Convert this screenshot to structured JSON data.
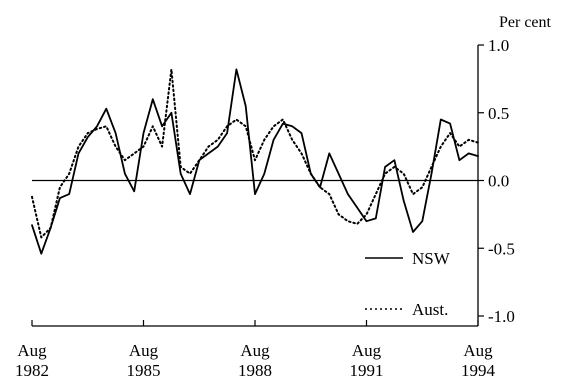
{
  "chart_data": {
    "type": "line",
    "title": "",
    "xlabel": "",
    "ylabel": "Per cent",
    "ylim": [
      -1.0,
      1.0
    ],
    "xlim": [
      "1982-08",
      "1994-08"
    ],
    "yticks": [
      "1.0",
      "0.5",
      "0.0",
      "-0.5",
      "-1.0"
    ],
    "xticks": [
      {
        "top": "Aug",
        "bottom": "1982",
        "date": "1982-08"
      },
      {
        "top": "Aug",
        "bottom": "1985",
        "date": "1985-08"
      },
      {
        "top": "Aug",
        "bottom": "1988",
        "date": "1988-08"
      },
      {
        "top": "Aug",
        "bottom": "1991",
        "date": "1991-08"
      },
      {
        "top": "Aug",
        "bottom": "1994",
        "date": "1994-08"
      }
    ],
    "grid": false,
    "legend_position": "bottom-right",
    "series": [
      {
        "name": "NSW",
        "style": "solid",
        "color": "#000000",
        "points": [
          [
            "1982-08",
            -0.33
          ],
          [
            "1982-11",
            -0.54
          ],
          [
            "1983-02",
            -0.35
          ],
          [
            "1983-05",
            -0.13
          ],
          [
            "1983-08",
            -0.1
          ],
          [
            "1983-11",
            0.2
          ],
          [
            "1984-02",
            0.32
          ],
          [
            "1984-05",
            0.4
          ],
          [
            "1984-08",
            0.53
          ],
          [
            "1984-11",
            0.35
          ],
          [
            "1985-02",
            0.05
          ],
          [
            "1985-05",
            -0.08
          ],
          [
            "1985-08",
            0.35
          ],
          [
            "1985-11",
            0.6
          ],
          [
            "1986-02",
            0.4
          ],
          [
            "1986-05",
            0.5
          ],
          [
            "1986-08",
            0.05
          ],
          [
            "1986-11",
            -0.1
          ],
          [
            "1987-02",
            0.15
          ],
          [
            "1987-05",
            0.2
          ],
          [
            "1987-08",
            0.25
          ],
          [
            "1987-11",
            0.35
          ],
          [
            "1988-02",
            0.82
          ],
          [
            "1988-05",
            0.55
          ],
          [
            "1988-08",
            -0.1
          ],
          [
            "1988-11",
            0.05
          ],
          [
            "1989-02",
            0.3
          ],
          [
            "1989-05",
            0.42
          ],
          [
            "1989-08",
            0.4
          ],
          [
            "1989-11",
            0.35
          ],
          [
            "1990-02",
            0.05
          ],
          [
            "1990-05",
            -0.05
          ],
          [
            "1990-08",
            0.2
          ],
          [
            "1990-11",
            0.05
          ],
          [
            "1991-02",
            -0.1
          ],
          [
            "1991-05",
            -0.2
          ],
          [
            "1991-08",
            -0.3
          ],
          [
            "1991-11",
            -0.28
          ],
          [
            "1992-02",
            0.1
          ],
          [
            "1992-05",
            0.15
          ],
          [
            "1992-08",
            -0.15
          ],
          [
            "1992-11",
            -0.38
          ],
          [
            "1993-02",
            -0.3
          ],
          [
            "1993-05",
            0.05
          ],
          [
            "1993-08",
            0.45
          ],
          [
            "1993-11",
            0.42
          ],
          [
            "1994-02",
            0.15
          ],
          [
            "1994-05",
            0.2
          ],
          [
            "1994-08",
            0.18
          ]
        ]
      },
      {
        "name": "Aust.",
        "style": "dotted",
        "color": "#000000",
        "points": [
          [
            "1982-08",
            -0.12
          ],
          [
            "1982-11",
            -0.42
          ],
          [
            "1983-02",
            -0.35
          ],
          [
            "1983-05",
            -0.05
          ],
          [
            "1983-08",
            0.05
          ],
          [
            "1983-11",
            0.25
          ],
          [
            "1984-02",
            0.35
          ],
          [
            "1984-05",
            0.38
          ],
          [
            "1984-08",
            0.4
          ],
          [
            "1984-11",
            0.25
          ],
          [
            "1985-02",
            0.15
          ],
          [
            "1985-05",
            0.2
          ],
          [
            "1985-08",
            0.25
          ],
          [
            "1985-11",
            0.4
          ],
          [
            "1986-02",
            0.25
          ],
          [
            "1986-05",
            0.82
          ],
          [
            "1986-08",
            0.1
          ],
          [
            "1986-11",
            0.05
          ],
          [
            "1987-02",
            0.15
          ],
          [
            "1987-05",
            0.25
          ],
          [
            "1987-08",
            0.3
          ],
          [
            "1987-11",
            0.4
          ],
          [
            "1988-02",
            0.45
          ],
          [
            "1988-05",
            0.4
          ],
          [
            "1988-08",
            0.15
          ],
          [
            "1988-11",
            0.3
          ],
          [
            "1989-02",
            0.4
          ],
          [
            "1989-05",
            0.45
          ],
          [
            "1989-08",
            0.3
          ],
          [
            "1989-11",
            0.2
          ],
          [
            "1990-02",
            0.05
          ],
          [
            "1990-05",
            -0.05
          ],
          [
            "1990-08",
            -0.1
          ],
          [
            "1990-11",
            -0.25
          ],
          [
            "1991-02",
            -0.3
          ],
          [
            "1991-05",
            -0.32
          ],
          [
            "1991-08",
            -0.25
          ],
          [
            "1991-11",
            -0.1
          ],
          [
            "1992-02",
            0.05
          ],
          [
            "1992-05",
            0.1
          ],
          [
            "1992-08",
            0.05
          ],
          [
            "1992-11",
            -0.1
          ],
          [
            "1993-02",
            -0.05
          ],
          [
            "1993-05",
            0.1
          ],
          [
            "1993-08",
            0.25
          ],
          [
            "1993-11",
            0.35
          ],
          [
            "1994-02",
            0.25
          ],
          [
            "1994-05",
            0.3
          ],
          [
            "1994-08",
            0.28
          ]
        ]
      }
    ]
  }
}
